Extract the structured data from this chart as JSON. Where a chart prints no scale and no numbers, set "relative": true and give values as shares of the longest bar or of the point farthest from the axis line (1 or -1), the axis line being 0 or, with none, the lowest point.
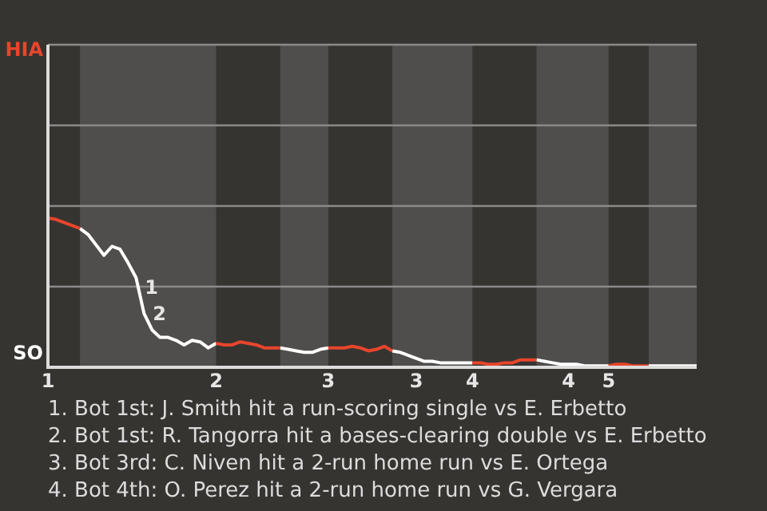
{
  "chart_data": {
    "type": "line",
    "relative": true,
    "categories": [
      "1",
      null,
      null,
      null,
      null,
      null,
      null,
      null,
      null,
      null,
      null,
      null,
      null,
      null,
      null,
      null,
      null,
      null,
      null,
      null,
      null,
      "2",
      null,
      null,
      null,
      null,
      null,
      null,
      null,
      null,
      null,
      null,
      null,
      null,
      null,
      "3",
      null,
      null,
      null,
      null,
      null,
      null,
      null,
      null,
      null,
      null,
      "3",
      null,
      null,
      null,
      null,
      null,
      null,
      "4",
      null,
      null,
      null,
      null,
      null,
      null,
      null,
      null,
      null,
      null,
      null,
      "4",
      null,
      null,
      null,
      null,
      "5",
      null,
      null,
      null,
      null,
      null,
      null,
      null,
      null,
      null,
      null,
      null
    ],
    "legend": "left",
    "ref_lines": [
      {
        "axis": "y",
        "value": 0.54,
        "color": "#8a8a8a"
      },
      {
        "axis": "y",
        "value": 1.08,
        "color": "#8a8a8a"
      },
      {
        "axis": "y",
        "value": 1.62,
        "color": "#8a8a8a"
      },
      {
        "axis": "y",
        "value": 2.16,
        "color": "#8a8a8a"
      }
    ],
    "marker": "none",
    "line_style": "solid",
    "series": [
      {
        "name": "HIA",
        "color": "#e8452c",
        "values": [
          1,
          0.99,
          0.97,
          0.95,
          0.93,
          null,
          null,
          null,
          null,
          null,
          null,
          null,
          null,
          null,
          null,
          null,
          null,
          null,
          null,
          null,
          null,
          0.16,
          0.15,
          0.15,
          0.17,
          0.16,
          0.15,
          0.13,
          0.13,
          0.13,
          null,
          null,
          null,
          null,
          null,
          0.13,
          0.13,
          0.13,
          0.14,
          0.13,
          0.11,
          0.12,
          0.14,
          0.11,
          null,
          null,
          null,
          null,
          null,
          null,
          null,
          null,
          null,
          0.03,
          0.03,
          0.02,
          0.02,
          0.03,
          0.03,
          0.05,
          0.05,
          0.05,
          null,
          null,
          null,
          null,
          null,
          null,
          null,
          null,
          0.01,
          0.02,
          0.02,
          0.01,
          0.01,
          0.01,
          null,
          null,
          null,
          null,
          null,
          null
        ]
      },
      {
        "name": "SO",
        "color": "#ffffff",
        "values": [
          null,
          null,
          null,
          null,
          0.93,
          0.89,
          0.82,
          0.75,
          0.81,
          0.79,
          0.7,
          0.6,
          0.36,
          0.25,
          0.2,
          0.2,
          0.18,
          0.15,
          0.18,
          0.17,
          0.13,
          0.16,
          null,
          null,
          null,
          null,
          null,
          null,
          null,
          0.13,
          0.12,
          0.11,
          0.1,
          0.1,
          0.12,
          0.13,
          null,
          null,
          null,
          null,
          null,
          null,
          null,
          0.11,
          0.1,
          0.08,
          0.06,
          0.04,
          0.04,
          0.03,
          0.03,
          0.03,
          0.03,
          0.03,
          null,
          null,
          null,
          null,
          null,
          null,
          null,
          0.05,
          0.04,
          0.03,
          0.02,
          0.02,
          0.02,
          0.01,
          0.01,
          0.01,
          0.01,
          null,
          null,
          null,
          null,
          0.01,
          0.01,
          0.01,
          0.01,
          0.01,
          0.01,
          0.01
        ]
      }
    ],
    "annotations": [
      "1",
      "2",
      "1. Bot 1st: J. Smith hit a run-scoring single vs E. Erbetto",
      "2. Bot 1st: R. Tangorra hit a bases-clearing double vs E. Erbetto",
      "3. Bot 3rd: C. Niven hit a 2-run home run vs E. Ortega",
      "4. Bot 4th: O. Perez hit a 2-run home run vs G. Vergara"
    ]
  }
}
